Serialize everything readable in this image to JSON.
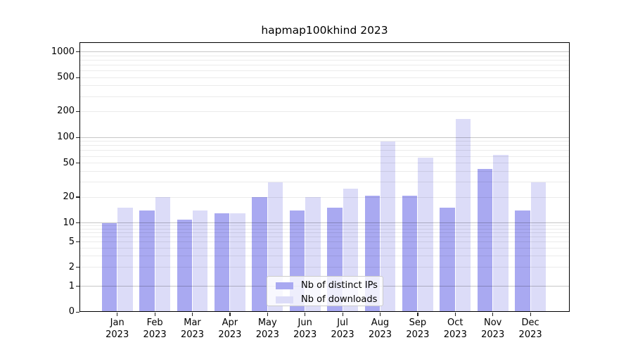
{
  "chart_data": {
    "type": "bar",
    "title": "hapmap100khind 2023",
    "categories": [
      "Jan 2023",
      "Feb 2023",
      "Mar 2023",
      "Apr 2023",
      "May 2023",
      "Jun 2023",
      "Jul 2023",
      "Aug 2023",
      "Sep 2023",
      "Oct 2023",
      "Nov 2023",
      "Dec 2023"
    ],
    "series": [
      {
        "name": "Nb of distinct IPs",
        "color": "#a9a9f1",
        "values": [
          10,
          14,
          11,
          13,
          20,
          14,
          15,
          21,
          21,
          15,
          43,
          14
        ]
      },
      {
        "name": "Nb of downloads",
        "color": "#dcdcf8",
        "values": [
          15,
          20,
          14,
          13,
          30,
          20,
          25,
          89,
          58,
          163,
          62,
          30
        ]
      }
    ],
    "yscale": "log",
    "y_ticks": [
      0,
      1,
      2,
      5,
      10,
      20,
      50,
      100,
      200,
      500,
      1000
    ],
    "ylim": [
      0,
      1300
    ],
    "grid": true,
    "legend_position": "lower center",
    "xlabel": "",
    "ylabel": ""
  },
  "colors": {
    "ips_bar": "#a9a9f1",
    "downloads_bar": "#dcdcf8",
    "major_grid": "#c7c7c7",
    "minor_grid": "#ebebeb"
  }
}
